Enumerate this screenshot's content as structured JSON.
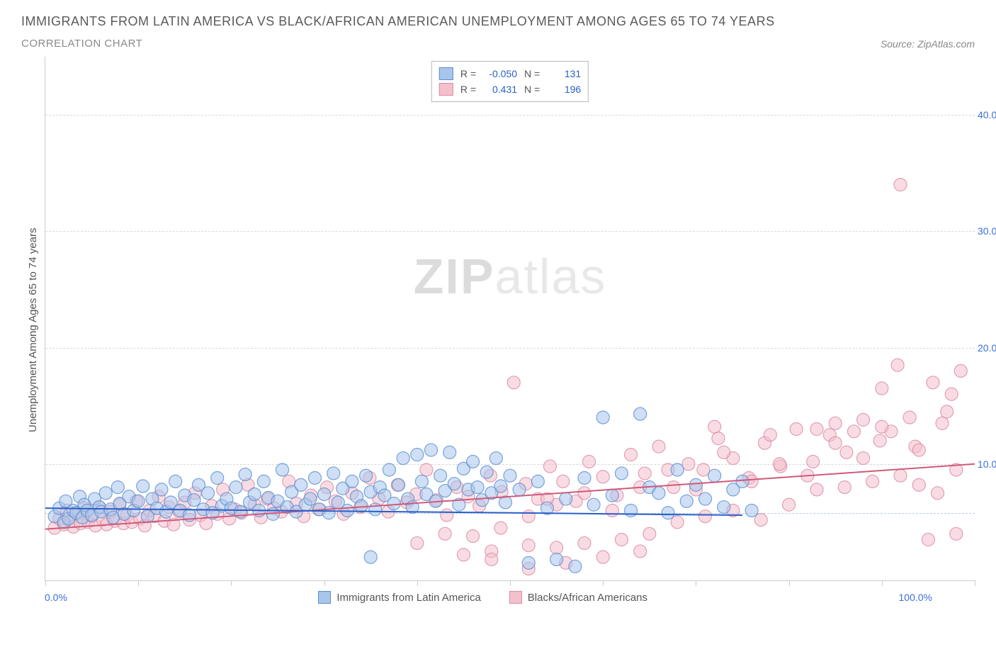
{
  "title": "IMMIGRANTS FROM LATIN AMERICA VS BLACK/AFRICAN AMERICAN UNEMPLOYMENT AMONG AGES 65 TO 74 YEARS",
  "subtitle": "CORRELATION CHART",
  "source": "Source: ZipAtlas.com",
  "watermark_a": "ZIP",
  "watermark_b": "atlas",
  "y_axis_label": "Unemployment Among Ages 65 to 74 years",
  "xlim": [
    0,
    100
  ],
  "ylim": [
    0,
    45
  ],
  "y_ticks": [
    10,
    20,
    30,
    40
  ],
  "y_tick_labels": [
    "10.0%",
    "20.0%",
    "30.0%",
    "40.0%"
  ],
  "x_ticks": [
    0,
    10,
    20,
    30,
    40,
    50,
    60,
    70,
    80,
    90,
    100
  ],
  "x_min_label": "0.0%",
  "x_max_label": "100.0%",
  "legend": {
    "series1": {
      "label": "Immigrants from Latin America",
      "fill": "#a8c5ec",
      "stroke": "#5a8fd0"
    },
    "series2": {
      "label": "Blacks/African Americans",
      "fill": "#f4c0cc",
      "stroke": "#d98ba2"
    }
  },
  "stats": [
    {
      "swatch_fill": "#a8c5ec",
      "swatch_stroke": "#5a8fd0",
      "r_label": "R =",
      "r": "-0.050",
      "n_label": "N =",
      "n": "131"
    },
    {
      "swatch_fill": "#f4c0cc",
      "swatch_stroke": "#d98ba2",
      "r_label": "R =",
      "r": "0.431",
      "n_label": "N =",
      "n": "196"
    }
  ],
  "marker_radius": 9,
  "marker_opacity": 0.55,
  "trend_lines": {
    "series1": {
      "x1": 0,
      "y1": 6.2,
      "x2": 75,
      "y2": 5.6,
      "color": "#2a5fc8",
      "width": 2
    },
    "series2": {
      "x1": 0,
      "y1": 4.4,
      "x2": 100,
      "y2": 10.0,
      "color": "#d05a7a",
      "width": 2
    }
  },
  "zero_line_y": 5.8,
  "series1_points": [
    [
      1,
      5.5
    ],
    [
      1.5,
      6.2
    ],
    [
      2,
      5.0
    ],
    [
      2.2,
      6.8
    ],
    [
      2.5,
      5.3
    ],
    [
      3,
      6.0
    ],
    [
      3.3,
      5.8
    ],
    [
      3.7,
      7.2
    ],
    [
      4,
      5.4
    ],
    [
      4.2,
      6.5
    ],
    [
      4.5,
      6.0
    ],
    [
      5,
      5.6
    ],
    [
      5.3,
      7.0
    ],
    [
      5.8,
      6.3
    ],
    [
      6,
      5.9
    ],
    [
      6.5,
      7.5
    ],
    [
      7,
      6.1
    ],
    [
      7.3,
      5.4
    ],
    [
      7.8,
      8.0
    ],
    [
      8,
      6.6
    ],
    [
      8.5,
      5.7
    ],
    [
      9,
      7.2
    ],
    [
      9.5,
      6.0
    ],
    [
      10,
      6.8
    ],
    [
      10.5,
      8.1
    ],
    [
      11,
      5.5
    ],
    [
      11.5,
      7.0
    ],
    [
      12,
      6.2
    ],
    [
      12.5,
      7.8
    ],
    [
      13,
      5.9
    ],
    [
      13.5,
      6.7
    ],
    [
      14,
      8.5
    ],
    [
      14.5,
      6.0
    ],
    [
      15,
      7.3
    ],
    [
      15.5,
      5.6
    ],
    [
      16,
      6.9
    ],
    [
      16.5,
      8.2
    ],
    [
      17,
      6.1
    ],
    [
      17.5,
      7.5
    ],
    [
      18,
      5.8
    ],
    [
      18.5,
      8.8
    ],
    [
      19,
      6.4
    ],
    [
      19.5,
      7.0
    ],
    [
      20,
      6.2
    ],
    [
      20.5,
      8.0
    ],
    [
      21,
      5.9
    ],
    [
      21.5,
      9.1
    ],
    [
      22,
      6.7
    ],
    [
      22.5,
      7.4
    ],
    [
      23,
      6.0
    ],
    [
      23.5,
      8.5
    ],
    [
      24,
      7.1
    ],
    [
      24.5,
      5.7
    ],
    [
      25,
      6.8
    ],
    [
      25.5,
      9.5
    ],
    [
      26,
      6.3
    ],
    [
      26.5,
      7.6
    ],
    [
      27,
      5.9
    ],
    [
      27.5,
      8.2
    ],
    [
      28,
      6.5
    ],
    [
      28.5,
      7.0
    ],
    [
      29,
      8.8
    ],
    [
      29.5,
      6.1
    ],
    [
      30,
      7.4
    ],
    [
      30.5,
      5.8
    ],
    [
      31,
      9.2
    ],
    [
      31.5,
      6.7
    ],
    [
      32,
      7.9
    ],
    [
      32.5,
      6.0
    ],
    [
      33,
      8.5
    ],
    [
      33.5,
      7.2
    ],
    [
      34,
      6.4
    ],
    [
      34.5,
      9.0
    ],
    [
      35,
      7.6
    ],
    [
      35.5,
      6.1
    ],
    [
      36,
      8.0
    ],
    [
      36.5,
      7.3
    ],
    [
      37,
      9.5
    ],
    [
      37.5,
      6.6
    ],
    [
      38,
      8.2
    ],
    [
      38.5,
      10.5
    ],
    [
      39,
      7.0
    ],
    [
      39.5,
      6.3
    ],
    [
      40,
      10.8
    ],
    [
      40.5,
      8.5
    ],
    [
      41,
      7.4
    ],
    [
      41.5,
      11.2
    ],
    [
      42,
      6.8
    ],
    [
      42.5,
      9.0
    ],
    [
      43,
      7.7
    ],
    [
      43.5,
      11.0
    ],
    [
      44,
      8.3
    ],
    [
      44.5,
      6.5
    ],
    [
      45,
      9.6
    ],
    [
      45.5,
      7.8
    ],
    [
      46,
      10.2
    ],
    [
      46.5,
      8.0
    ],
    [
      47,
      6.9
    ],
    [
      47.5,
      9.3
    ],
    [
      48,
      7.5
    ],
    [
      48.5,
      10.5
    ],
    [
      49,
      8.1
    ],
    [
      49.5,
      6.7
    ],
    [
      50,
      9.0
    ],
    [
      51,
      7.8
    ],
    [
      52,
      1.5
    ],
    [
      53,
      8.5
    ],
    [
      54,
      6.2
    ],
    [
      55,
      1.8
    ],
    [
      56,
      7.0
    ],
    [
      57,
      1.2
    ],
    [
      58,
      8.8
    ],
    [
      59,
      6.5
    ],
    [
      60,
      14.0
    ],
    [
      61,
      7.3
    ],
    [
      62,
      9.2
    ],
    [
      63,
      6.0
    ],
    [
      64,
      14.3
    ],
    [
      65,
      8.0
    ],
    [
      66,
      7.5
    ],
    [
      67,
      5.8
    ],
    [
      68,
      9.5
    ],
    [
      69,
      6.8
    ],
    [
      70,
      8.2
    ],
    [
      71,
      7.0
    ],
    [
      72,
      9.0
    ],
    [
      73,
      6.3
    ],
    [
      74,
      7.8
    ],
    [
      75,
      8.5
    ],
    [
      76,
      6.0
    ],
    [
      35,
      2.0
    ]
  ],
  "series2_points": [
    [
      1,
      4.5
    ],
    [
      1.5,
      5.3
    ],
    [
      2,
      4.8
    ],
    [
      2.3,
      6.0
    ],
    [
      2.7,
      5.1
    ],
    [
      3,
      4.6
    ],
    [
      3.4,
      5.7
    ],
    [
      3.8,
      4.9
    ],
    [
      4.2,
      6.2
    ],
    [
      4.6,
      5.0
    ],
    [
      5,
      5.5
    ],
    [
      5.4,
      4.7
    ],
    [
      5.8,
      6.3
    ],
    [
      6.2,
      5.2
    ],
    [
      6.6,
      4.8
    ],
    [
      7,
      5.9
    ],
    [
      7.5,
      5.1
    ],
    [
      8,
      6.5
    ],
    [
      8.4,
      4.9
    ],
    [
      8.8,
      5.6
    ],
    [
      9.3,
      5.0
    ],
    [
      9.8,
      6.8
    ],
    [
      10.2,
      5.3
    ],
    [
      10.7,
      4.7
    ],
    [
      11.2,
      6.0
    ],
    [
      11.7,
      5.5
    ],
    [
      12.2,
      7.2
    ],
    [
      12.8,
      5.1
    ],
    [
      13.3,
      6.3
    ],
    [
      13.8,
      4.8
    ],
    [
      14.4,
      5.9
    ],
    [
      15,
      6.7
    ],
    [
      15.5,
      5.2
    ],
    [
      16.1,
      7.5
    ],
    [
      16.7,
      5.6
    ],
    [
      17.3,
      4.9
    ],
    [
      17.9,
      6.4
    ],
    [
      18.5,
      5.7
    ],
    [
      19.1,
      7.8
    ],
    [
      19.8,
      5.3
    ],
    [
      20.4,
      6.1
    ],
    [
      21.1,
      5.8
    ],
    [
      21.8,
      8.2
    ],
    [
      22.5,
      6.5
    ],
    [
      23.2,
      5.4
    ],
    [
      23.9,
      7.0
    ],
    [
      24.6,
      6.2
    ],
    [
      25.4,
      5.9
    ],
    [
      26.2,
      8.5
    ],
    [
      27,
      6.6
    ],
    [
      27.8,
      5.5
    ],
    [
      28.6,
      7.3
    ],
    [
      29.4,
      6.1
    ],
    [
      30.3,
      8.0
    ],
    [
      31.2,
      6.8
    ],
    [
      32.1,
      5.7
    ],
    [
      33,
      7.5
    ],
    [
      33.9,
      6.3
    ],
    [
      34.9,
      8.8
    ],
    [
      35.9,
      7.0
    ],
    [
      36.9,
      5.9
    ],
    [
      37.9,
      8.2
    ],
    [
      38.9,
      6.7
    ],
    [
      39.9,
      7.4
    ],
    [
      41,
      9.5
    ],
    [
      42.1,
      6.9
    ],
    [
      43.2,
      5.6
    ],
    [
      44.3,
      8.0
    ],
    [
      45.5,
      7.2
    ],
    [
      46.7,
      6.4
    ],
    [
      47.9,
      9.0
    ],
    [
      49.1,
      7.6
    ],
    [
      50.4,
      17.0
    ],
    [
      51.7,
      8.3
    ],
    [
      53,
      7.0
    ],
    [
      54.3,
      9.8
    ],
    [
      55.7,
      8.5
    ],
    [
      57.1,
      6.8
    ],
    [
      58.5,
      10.2
    ],
    [
      60,
      8.9
    ],
    [
      61.5,
      7.3
    ],
    [
      63,
      10.8
    ],
    [
      64.5,
      9.2
    ],
    [
      66,
      11.5
    ],
    [
      67.6,
      8.0
    ],
    [
      69.2,
      10.0
    ],
    [
      70.8,
      9.5
    ],
    [
      72.4,
      12.2
    ],
    [
      74,
      10.5
    ],
    [
      75.7,
      8.8
    ],
    [
      77.4,
      11.8
    ],
    [
      79.1,
      9.8
    ],
    [
      80.8,
      13.0
    ],
    [
      82.6,
      10.2
    ],
    [
      84.4,
      12.5
    ],
    [
      86.2,
      11.0
    ],
    [
      88,
      13.8
    ],
    [
      89.8,
      12.0
    ],
    [
      91.7,
      18.5
    ],
    [
      93.6,
      11.5
    ],
    [
      95.5,
      17.0
    ],
    [
      96.5,
      13.5
    ],
    [
      97.5,
      16.0
    ],
    [
      98.5,
      18.0
    ],
    [
      92,
      34.0
    ],
    [
      45,
      2.2
    ],
    [
      48,
      2.5
    ],
    [
      52,
      3.0
    ],
    [
      55,
      2.8
    ],
    [
      58,
      3.2
    ],
    [
      62,
      3.5
    ],
    [
      65,
      4.0
    ],
    [
      68,
      5.0
    ],
    [
      71,
      5.5
    ],
    [
      74,
      6.0
    ],
    [
      77,
      5.2
    ],
    [
      80,
      6.5
    ],
    [
      83,
      7.8
    ],
    [
      86,
      8.0
    ],
    [
      89,
      8.5
    ],
    [
      92,
      9.0
    ],
    [
      94,
      8.2
    ],
    [
      96,
      7.5
    ],
    [
      98,
      9.5
    ],
    [
      40,
      3.2
    ],
    [
      43,
      4.0
    ],
    [
      46,
      3.8
    ],
    [
      49,
      4.5
    ],
    [
      52,
      5.5
    ],
    [
      55,
      6.5
    ],
    [
      58,
      7.5
    ],
    [
      61,
      6.0
    ],
    [
      64,
      8.0
    ],
    [
      67,
      9.5
    ],
    [
      70,
      7.8
    ],
    [
      73,
      11.0
    ],
    [
      76,
      8.5
    ],
    [
      79,
      10.0
    ],
    [
      82,
      9.0
    ],
    [
      85,
      11.8
    ],
    [
      88,
      10.5
    ],
    [
      91,
      12.8
    ],
    [
      94,
      11.2
    ],
    [
      97,
      14.5
    ],
    [
      85,
      13.5
    ],
    [
      87,
      12.8
    ],
    [
      90,
      13.2
    ],
    [
      93,
      14.0
    ],
    [
      48,
      1.8
    ],
    [
      52,
      1.0
    ],
    [
      56,
      1.5
    ],
    [
      60,
      2.0
    ],
    [
      64,
      2.5
    ],
    [
      95,
      3.5
    ],
    [
      98,
      4.0
    ],
    [
      90,
      16.5
    ],
    [
      83,
      13.0
    ],
    [
      78,
      12.5
    ],
    [
      72,
      13.2
    ],
    [
      54,
      7.0
    ]
  ],
  "colors": {
    "title": "#5a5a5a",
    "subtitle": "#8a8a8a",
    "axis_text": "#3a6fd8",
    "grid": "#d8d8d8",
    "border": "#cccccc",
    "zero_line": "#b9c9e0"
  }
}
